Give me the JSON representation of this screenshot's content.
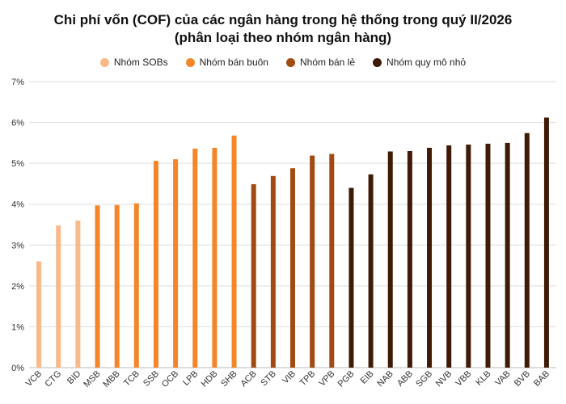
{
  "chart_data": {
    "type": "bar",
    "title_line1": "Chi phí vốn (COF) của các ngân hàng trong hệ thống trong quý II/2026",
    "title_line2": "(phân loại theo nhóm ngân hàng)",
    "xlabel": "",
    "ylabel": "",
    "ylim": [
      0,
      7
    ],
    "yticks": [
      "0%",
      "1%",
      "2%",
      "3%",
      "4%",
      "5%",
      "6%",
      "7%"
    ],
    "grid": true,
    "legend_position": "top",
    "series": [
      {
        "name": "Nhóm SOBs",
        "color": "#F9B98A"
      },
      {
        "name": "Nhóm bán buôn",
        "color": "#F5852A"
      },
      {
        "name": "Nhóm bán lẻ",
        "color": "#A14A12"
      },
      {
        "name": "Nhóm quy mô nhỏ",
        "color": "#3E1B06"
      }
    ],
    "categories": [
      "VCB",
      "CTG",
      "BID",
      "MSB",
      "MBB",
      "TCB",
      "SSB",
      "OCB",
      "LPB",
      "HDB",
      "SHB",
      "ACB",
      "STB",
      "VIB",
      "TPB",
      "VPB",
      "PGB",
      "EIB",
      "NAB",
      "ABB",
      "SGB",
      "NVB",
      "VBB",
      "KLB",
      "VAB",
      "BVB",
      "BAB"
    ],
    "values": [
      2.6,
      3.48,
      3.6,
      3.97,
      3.98,
      4.02,
      5.06,
      5.1,
      5.36,
      5.38,
      5.68,
      4.49,
      4.69,
      4.88,
      5.19,
      5.23,
      4.4,
      4.73,
      5.29,
      5.3,
      5.38,
      5.44,
      5.46,
      5.48,
      5.5,
      5.74,
      6.12
    ],
    "groups": [
      0,
      0,
      0,
      1,
      1,
      1,
      1,
      1,
      1,
      1,
      1,
      2,
      2,
      2,
      2,
      2,
      3,
      3,
      3,
      3,
      3,
      3,
      3,
      3,
      3,
      3,
      3
    ]
  }
}
